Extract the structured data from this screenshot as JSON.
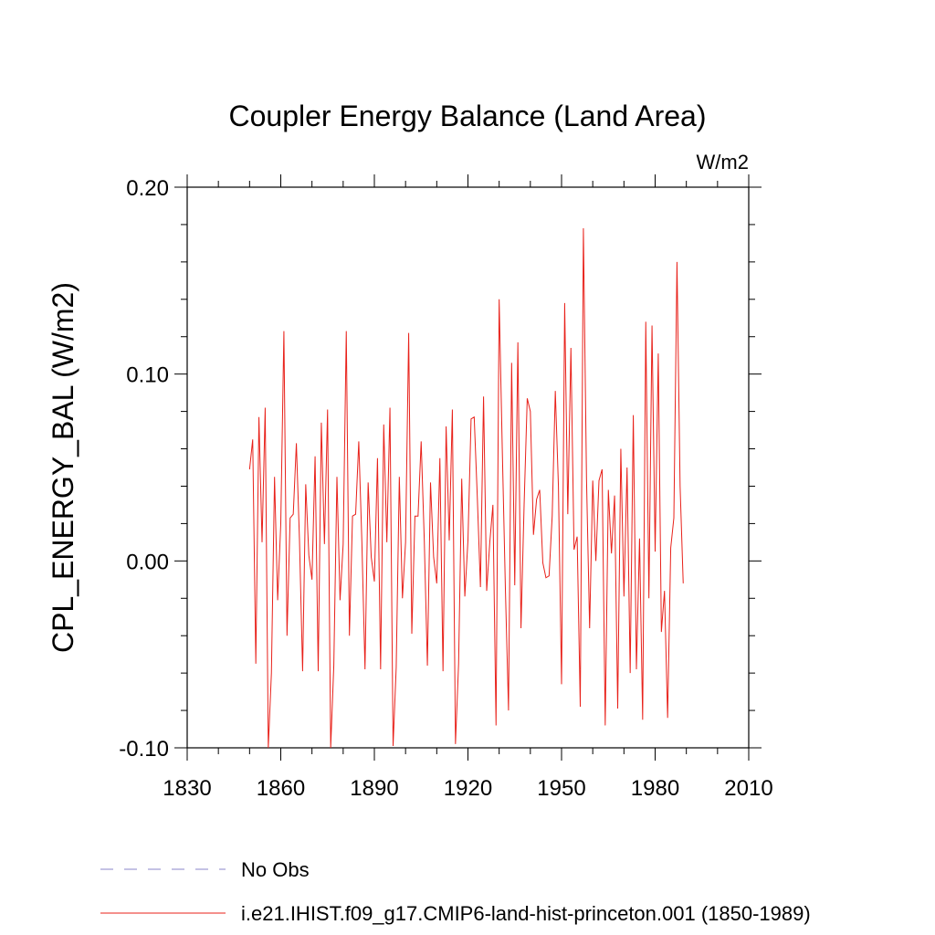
{
  "chart_data": {
    "type": "line",
    "title": "Coupler Energy Balance (Land Area)",
    "units_label": "W/m2",
    "xlabel": "",
    "ylabel": "CPL_ENERGY_BAL  (W/m2)",
    "xlim": [
      1830,
      2010
    ],
    "ylim": [
      -0.1,
      0.2
    ],
    "x_ticks": [
      1830,
      1860,
      1890,
      1920,
      1950,
      1980,
      2010
    ],
    "x_tick_labels": [
      "1830",
      "1860",
      "1890",
      "1920",
      "1950",
      "1980",
      "2010"
    ],
    "y_ticks": [
      -0.1,
      0.0,
      0.1,
      0.2
    ],
    "y_tick_labels": [
      "-0.10",
      "0.00",
      "0.10",
      "0.20"
    ],
    "grid": false,
    "legend_position": "bottom",
    "legend": [
      {
        "label": "No Obs",
        "color": "#8a84c8",
        "style": "dashed"
      },
      {
        "label": "i.e21.IHIST.f09_g17.CMIP6-land-hist-princeton.001 (1850-1989)",
        "color": "#e8211a",
        "style": "solid"
      }
    ],
    "series": [
      {
        "name": "i.e21.IHIST.f09_g17.CMIP6-land-hist-princeton.001 (1850-1989)",
        "color": "#e8211a",
        "x_start": 1850,
        "x_step": 1,
        "values": [
          0.049,
          0.065,
          -0.055,
          0.077,
          0.01,
          0.082,
          -0.1,
          -0.06,
          0.045,
          -0.021,
          0.02,
          0.123,
          -0.04,
          0.023,
          0.025,
          0.063,
          0.011,
          -0.059,
          0.041,
          0.003,
          -0.01,
          0.056,
          -0.059,
          0.074,
          0.009,
          0.081,
          -0.1,
          -0.056,
          0.045,
          -0.021,
          0.009,
          0.123,
          -0.04,
          0.024,
          0.025,
          0.064,
          0.01,
          -0.058,
          0.042,
          0.002,
          -0.011,
          0.055,
          -0.058,
          0.073,
          0.01,
          0.082,
          -0.099,
          -0.057,
          0.045,
          -0.02,
          0.01,
          0.122,
          -0.039,
          0.024,
          0.024,
          0.064,
          0.011,
          -0.056,
          0.042,
          0.002,
          -0.012,
          0.055,
          -0.059,
          0.072,
          0.011,
          0.081,
          -0.098,
          -0.055,
          0.044,
          -0.019,
          0.011,
          0.076,
          0.077,
          0.034,
          -0.014,
          0.088,
          -0.016,
          0.01,
          0.03,
          -0.088,
          0.14,
          0.06,
          -0.015,
          -0.08,
          0.106,
          -0.013,
          0.117,
          -0.036,
          0.03,
          0.087,
          0.08,
          0.014,
          0.033,
          0.038,
          -0.001,
          -0.009,
          -0.008,
          0.024,
          0.091,
          0.04,
          -0.066,
          0.138,
          0.025,
          0.114,
          0.006,
          0.013,
          -0.078,
          0.178,
          0.044,
          -0.036,
          0.043,
          0.0,
          0.043,
          0.049,
          -0.088,
          0.038,
          0.004,
          0.035,
          -0.079,
          0.06,
          -0.019,
          0.05,
          -0.06,
          0.078,
          -0.058,
          0.012,
          -0.085,
          0.128,
          -0.02,
          0.126,
          0.005,
          0.111,
          -0.038,
          -0.016,
          -0.084,
          0.007,
          0.023,
          0.16,
          0.04,
          -0.012
        ]
      }
    ]
  }
}
